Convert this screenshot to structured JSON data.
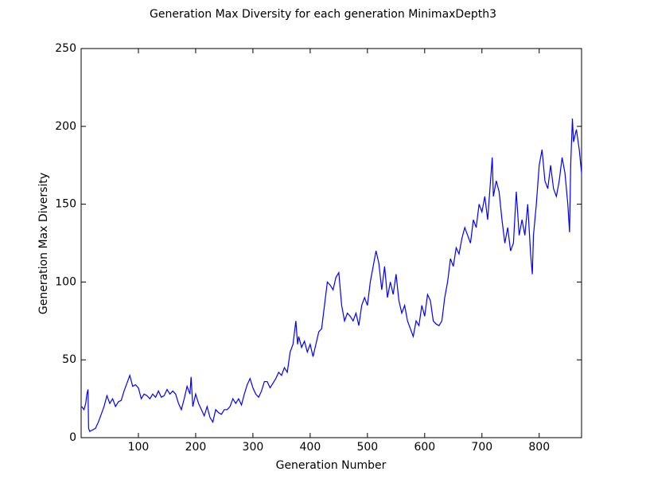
{
  "chart_data": {
    "type": "line",
    "title": "Generation Max Diversity for each generation MinimaxDepth3",
    "x_label": "Generation Number",
    "y_label": "Generation Max Diversity",
    "xlim": [
      0,
      874
    ],
    "ylim": [
      0,
      250
    ],
    "xticks": [
      100,
      200,
      300,
      400,
      500,
      600,
      700,
      800
    ],
    "yticks": [
      0,
      50,
      100,
      150,
      200,
      250
    ],
    "grid": false,
    "series": [
      {
        "name": "Generation Max Diversity",
        "color": "#0000ff",
        "x": [
          1,
          5,
          8,
          10,
          12,
          13,
          15,
          20,
          25,
          30,
          35,
          40,
          45,
          50,
          55,
          60,
          65,
          70,
          75,
          80,
          85,
          90,
          95,
          100,
          105,
          110,
          115,
          120,
          125,
          130,
          135,
          140,
          145,
          150,
          155,
          160,
          165,
          170,
          175,
          180,
          185,
          190,
          192,
          195,
          200,
          205,
          210,
          215,
          220,
          225,
          230,
          235,
          240,
          245,
          250,
          255,
          260,
          265,
          270,
          275,
          280,
          285,
          290,
          295,
          300,
          305,
          310,
          315,
          320,
          325,
          330,
          335,
          340,
          345,
          350,
          355,
          360,
          365,
          370,
          375,
          378,
          380,
          385,
          390,
          395,
          400,
          405,
          410,
          415,
          420,
          425,
          430,
          435,
          440,
          445,
          450,
          455,
          460,
          465,
          470,
          475,
          480,
          485,
          490,
          495,
          500,
          505,
          510,
          515,
          520,
          525,
          530,
          535,
          540,
          545,
          550,
          555,
          560,
          565,
          570,
          575,
          580,
          585,
          590,
          595,
          600,
          605,
          610,
          615,
          620,
          625,
          630,
          635,
          640,
          645,
          650,
          655,
          660,
          665,
          670,
          675,
          680,
          685,
          690,
          695,
          700,
          705,
          710,
          715,
          718,
          720,
          725,
          730,
          735,
          740,
          745,
          750,
          755,
          760,
          765,
          770,
          775,
          780,
          785,
          788,
          790,
          795,
          800,
          805,
          810,
          815,
          820,
          825,
          830,
          835,
          840,
          845,
          850,
          853,
          855,
          858,
          860,
          865,
          870,
          874
        ],
        "values": [
          20,
          18,
          22,
          28,
          31,
          6,
          4,
          5,
          6,
          10,
          15,
          20,
          27,
          22,
          25,
          20,
          23,
          24,
          30,
          35,
          40,
          33,
          34,
          32,
          25,
          28,
          27,
          25,
          28,
          26,
          30,
          26,
          27,
          31,
          28,
          30,
          28,
          22,
          18,
          25,
          33,
          28,
          39,
          20,
          28,
          22,
          18,
          14,
          20,
          13,
          10,
          18,
          16,
          15,
          18,
          18,
          20,
          25,
          22,
          25,
          21,
          28,
          34,
          38,
          32,
          28,
          26,
          30,
          36,
          36,
          32,
          35,
          38,
          42,
          40,
          45,
          42,
          55,
          60,
          75,
          60,
          65,
          58,
          62,
          55,
          60,
          52,
          60,
          68,
          70,
          85,
          100,
          98,
          95,
          103,
          106,
          85,
          75,
          80,
          78,
          75,
          80,
          72,
          85,
          90,
          85,
          100,
          110,
          120,
          112,
          95,
          110,
          90,
          100,
          92,
          105,
          88,
          80,
          85,
          75,
          70,
          65,
          75,
          72,
          85,
          78,
          92,
          88,
          75,
          73,
          72,
          75,
          90,
          100,
          115,
          110,
          122,
          118,
          128,
          135,
          130,
          125,
          140,
          135,
          150,
          145,
          155,
          140,
          165,
          180,
          155,
          165,
          158,
          140,
          125,
          135,
          120,
          125,
          158,
          130,
          140,
          130,
          150,
          118,
          105,
          130,
          150,
          175,
          185,
          165,
          160,
          175,
          160,
          155,
          165,
          180,
          170,
          150,
          132,
          175,
          205,
          190,
          198,
          185,
          170
        ]
      }
    ]
  }
}
